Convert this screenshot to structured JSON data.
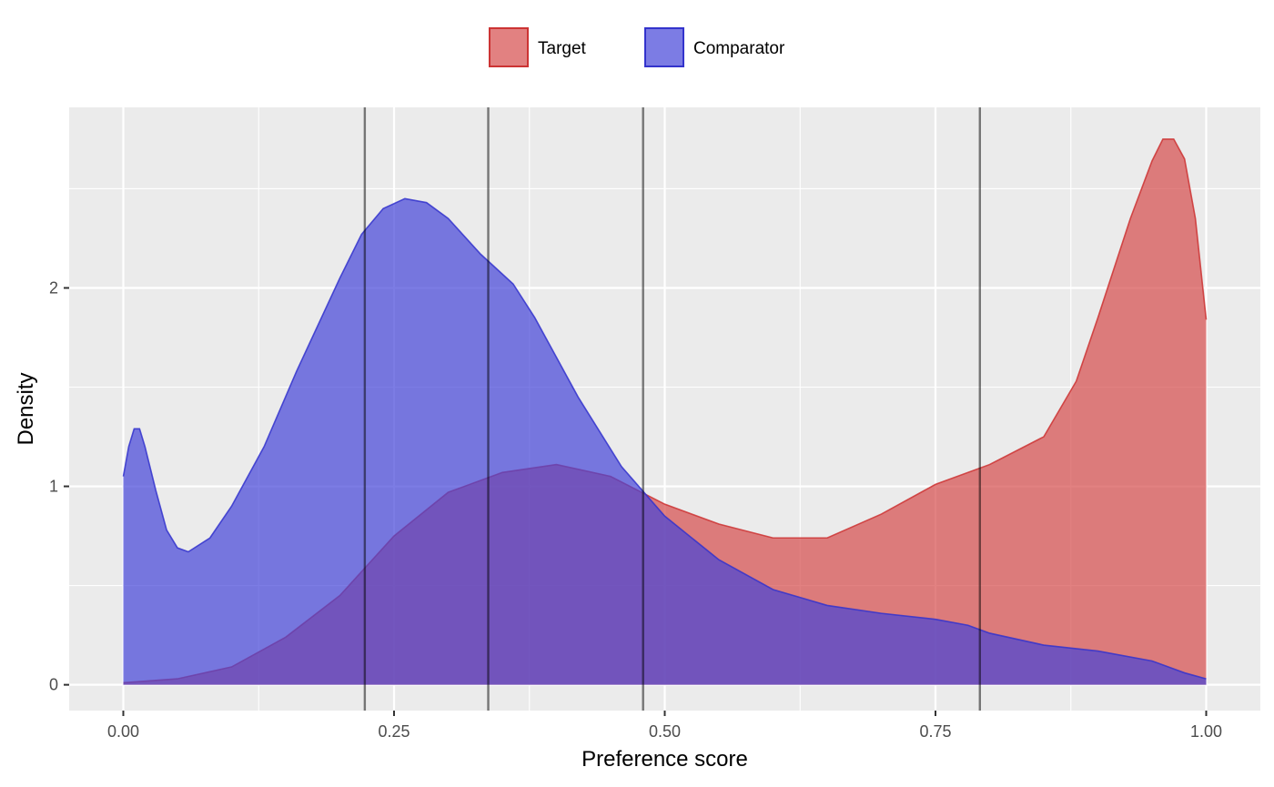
{
  "chart_data": {
    "type": "area",
    "title": "",
    "xlabel": "Preference score",
    "ylabel": "Density",
    "xlim": [
      -0.05,
      1.05
    ],
    "ylim": [
      -0.13,
      2.91
    ],
    "x_ticks": [
      0.0,
      0.25,
      0.5,
      0.75,
      1.0
    ],
    "x_tick_labels": [
      "0.00",
      "0.25",
      "0.50",
      "0.75",
      "1.00"
    ],
    "y_ticks": [
      0,
      1,
      2
    ],
    "y_tick_labels": [
      "0",
      "1",
      "2"
    ],
    "grid": true,
    "legend_position": "top",
    "vlines": [
      0.223,
      0.337,
      0.48,
      0.791
    ],
    "series": [
      {
        "name": "Target",
        "fill": "#d54b4b",
        "stroke": "#cc3333",
        "points": [
          [
            0.0,
            0.01
          ],
          [
            0.05,
            0.03
          ],
          [
            0.1,
            0.09
          ],
          [
            0.15,
            0.24
          ],
          [
            0.2,
            0.45
          ],
          [
            0.25,
            0.75
          ],
          [
            0.3,
            0.97
          ],
          [
            0.35,
            1.07
          ],
          [
            0.4,
            1.11
          ],
          [
            0.45,
            1.05
          ],
          [
            0.5,
            0.91
          ],
          [
            0.55,
            0.81
          ],
          [
            0.6,
            0.74
          ],
          [
            0.65,
            0.74
          ],
          [
            0.7,
            0.86
          ],
          [
            0.75,
            1.01
          ],
          [
            0.8,
            1.11
          ],
          [
            0.85,
            1.25
          ],
          [
            0.88,
            1.53
          ],
          [
            0.9,
            1.85
          ],
          [
            0.93,
            2.35
          ],
          [
            0.95,
            2.64
          ],
          [
            0.96,
            2.75
          ],
          [
            0.97,
            2.75
          ],
          [
            0.98,
            2.65
          ],
          [
            0.99,
            2.35
          ],
          [
            1.0,
            1.84
          ]
        ]
      },
      {
        "name": "Comparator",
        "fill": "#4545d8",
        "stroke": "#3333cc",
        "points": [
          [
            0.0,
            1.05
          ],
          [
            0.005,
            1.2
          ],
          [
            0.01,
            1.29
          ],
          [
            0.015,
            1.29
          ],
          [
            0.02,
            1.2
          ],
          [
            0.03,
            0.98
          ],
          [
            0.04,
            0.78
          ],
          [
            0.05,
            0.69
          ],
          [
            0.06,
            0.67
          ],
          [
            0.08,
            0.74
          ],
          [
            0.1,
            0.9
          ],
          [
            0.13,
            1.2
          ],
          [
            0.16,
            1.58
          ],
          [
            0.2,
            2.05
          ],
          [
            0.22,
            2.27
          ],
          [
            0.24,
            2.4
          ],
          [
            0.26,
            2.45
          ],
          [
            0.28,
            2.43
          ],
          [
            0.3,
            2.35
          ],
          [
            0.33,
            2.17
          ],
          [
            0.36,
            2.02
          ],
          [
            0.38,
            1.85
          ],
          [
            0.42,
            1.45
          ],
          [
            0.46,
            1.1
          ],
          [
            0.5,
            0.85
          ],
          [
            0.55,
            0.63
          ],
          [
            0.6,
            0.48
          ],
          [
            0.65,
            0.4
          ],
          [
            0.7,
            0.36
          ],
          [
            0.75,
            0.33
          ],
          [
            0.78,
            0.3
          ],
          [
            0.8,
            0.26
          ],
          [
            0.85,
            0.2
          ],
          [
            0.9,
            0.17
          ],
          [
            0.95,
            0.12
          ],
          [
            0.98,
            0.06
          ],
          [
            1.0,
            0.03
          ]
        ]
      }
    ]
  }
}
